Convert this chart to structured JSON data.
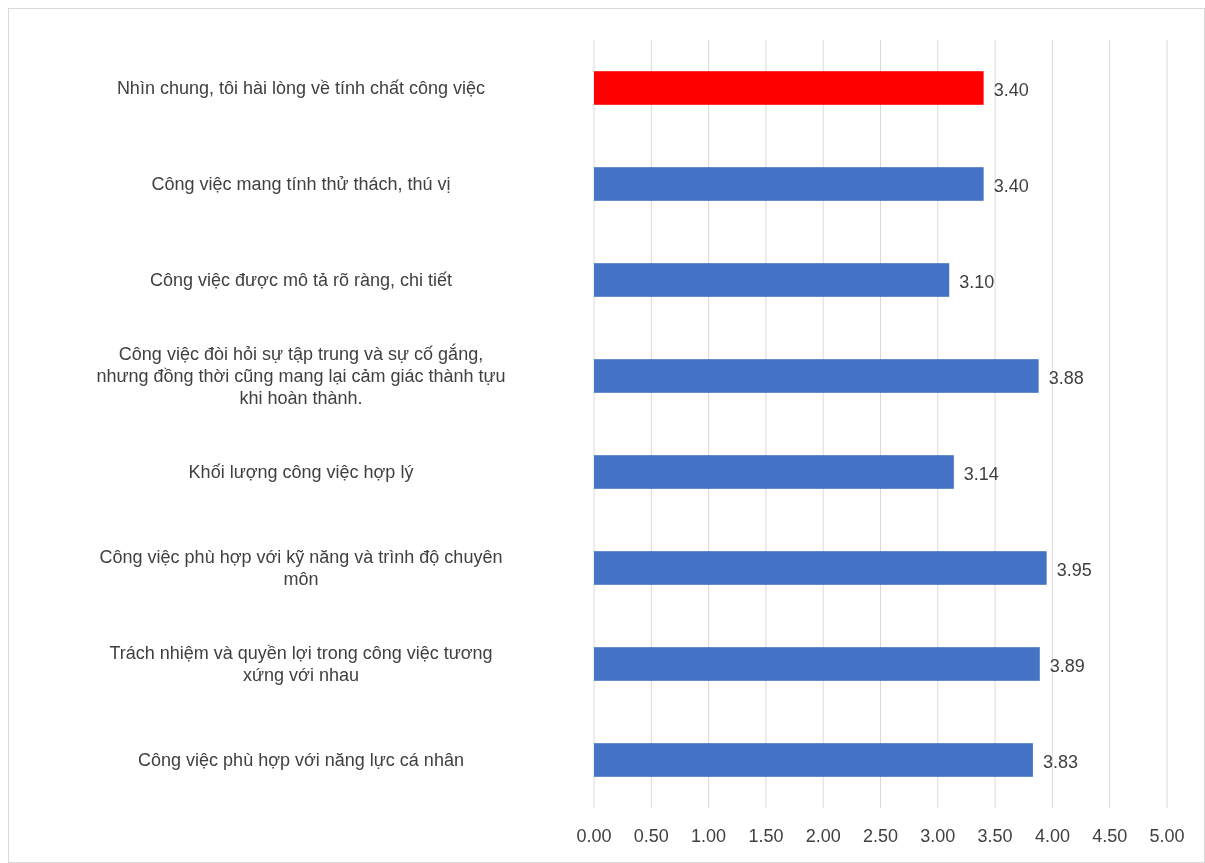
{
  "chart_data": {
    "type": "bar",
    "orientation": "horizontal",
    "categories": [
      "Nhìn chung, tôi hài lòng về tính chất công việc",
      "Công việc mang tính thử thách, thú vị",
      "Công việc được mô tả rõ ràng, chi tiết",
      "Công việc đòi hỏi sự tập trung và sự cố gắng, nhưng đồng thời cũng mang lại cảm giác thành tựu khi hoàn thành.",
      "Khối lượng công việc hợp lý",
      "Công việc phù hợp với kỹ năng và trình độ chuyên môn",
      "Trách nhiệm và quyền lợi trong công việc tương xứng với nhau",
      "Công việc phù hợp với năng lực cá nhân"
    ],
    "values": [
      3.4,
      3.4,
      3.1,
      3.88,
      3.14,
      3.95,
      3.89,
      3.83
    ],
    "colors": [
      "#ff0000",
      "#4472c4",
      "#4472c4",
      "#4472c4",
      "#4472c4",
      "#4472c4",
      "#4472c4",
      "#4472c4"
    ],
    "value_labels": [
      "3.40",
      "3.40",
      "3.10",
      "3.88",
      "3.14",
      "3.95",
      "3.89",
      "3.83"
    ],
    "xlim": [
      0,
      5
    ],
    "xticks": [
      {
        "value": 0,
        "label": "0.00"
      },
      {
        "value": 0.5,
        "label": "0.50"
      },
      {
        "value": 1,
        "label": "1.00"
      },
      {
        "value": 1.5,
        "label": "1.50"
      },
      {
        "value": 2,
        "label": "2.00"
      },
      {
        "value": 2.5,
        "label": "2.50"
      },
      {
        "value": 3,
        "label": "3.00"
      },
      {
        "value": 3.5,
        "label": "3.50"
      },
      {
        "value": 4,
        "label": "4.00"
      },
      {
        "value": 4.5,
        "label": "4.50"
      },
      {
        "value": 5,
        "label": "5.00"
      }
    ],
    "grid": "x"
  }
}
